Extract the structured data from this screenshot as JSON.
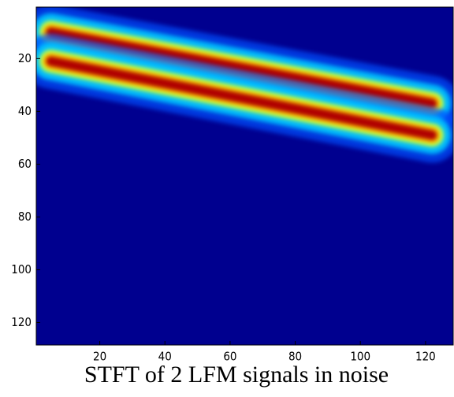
{
  "chart_data": {
    "type": "heatmap",
    "title": "STFT of 2 LFM signals in noise",
    "xlim": [
      0.5,
      128.5
    ],
    "ylim": [
      0.5,
      128.5
    ],
    "y_reversed": true,
    "xticks": [
      20,
      40,
      60,
      80,
      100,
      120
    ],
    "yticks": [
      20,
      40,
      60,
      80,
      100,
      120
    ],
    "background": "#00008f",
    "series": [
      {
        "color": "#b00000",
        "x": [
          5,
          122
        ],
        "values": [
          10,
          37
        ]
      },
      {
        "color": "#b00000",
        "x": [
          5,
          122
        ],
        "values": [
          21,
          49
        ]
      }
    ]
  }
}
